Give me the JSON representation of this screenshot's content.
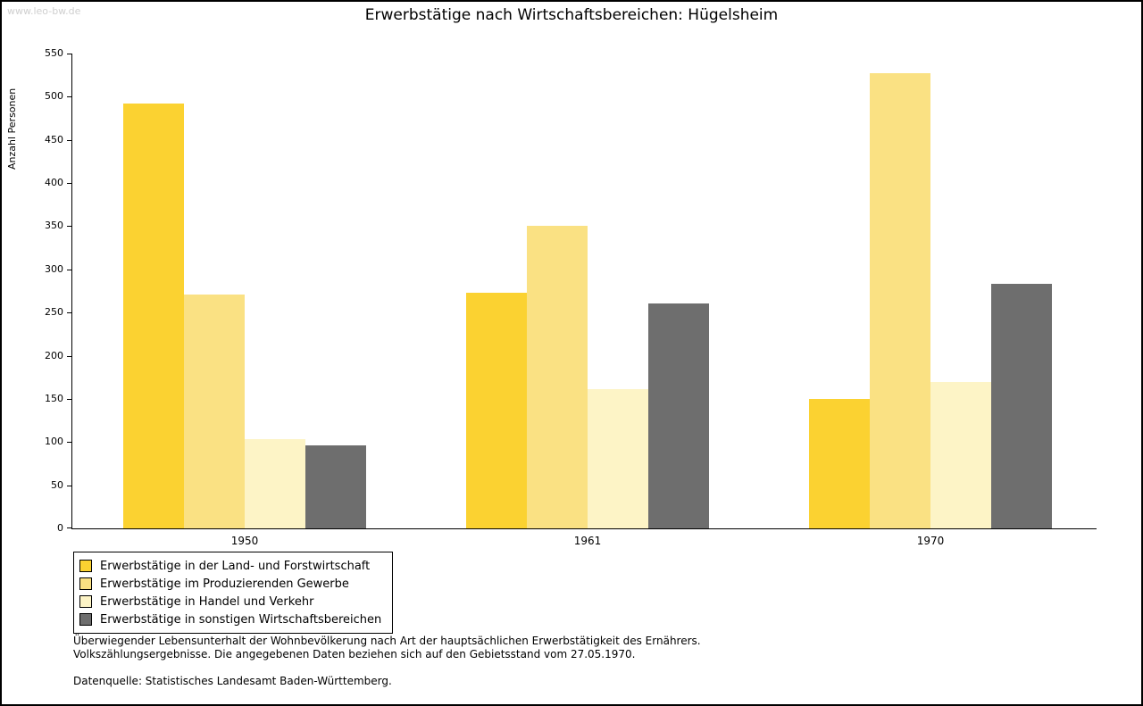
{
  "watermark": "www.leo-bw.de",
  "chart_data": {
    "type": "bar",
    "title": "Erwerbstätige nach Wirtschaftsbereichen: Hügelsheim",
    "xlabel": "",
    "ylabel": "Anzahl Personen",
    "categories": [
      "1950",
      "1961",
      "1970"
    ],
    "series": [
      {
        "name": "Erwerbstätige in der Land- und Forstwirtschaft",
        "color": "#FBD231",
        "values": [
          492,
          273,
          150
        ]
      },
      {
        "name": "Erwerbstätige im Produzierenden Gewerbe",
        "color": "#FAE183",
        "values": [
          271,
          350,
          527
        ]
      },
      {
        "name": "Erwerbstätige in Handel und Verkehr",
        "color": "#FDF4C6",
        "values": [
          103,
          161,
          170
        ]
      },
      {
        "name": "Erwerbstätige in sonstigen Wirtschaftsbereichen",
        "color": "#6E6E6E",
        "values": [
          96,
          261,
          283
        ]
      }
    ],
    "ylim": [
      0,
      550
    ],
    "y_ticks": [
      0,
      50,
      100,
      150,
      200,
      250,
      300,
      350,
      400,
      450,
      500,
      550
    ],
    "grid": false,
    "legend_position": "bottom-left"
  },
  "footnotes": [
    "Überwiegender Lebensunterhalt der Wohnbevölkerung nach Art der hauptsächlichen Erwerbstätigkeit des Ernährers.",
    "Volkszählungsergebnisse. Die angegebenen Daten beziehen sich auf den Gebietsstand vom 27.05.1970."
  ],
  "datasource": "Datenquelle: Statistisches Landesamt Baden-Württemberg."
}
